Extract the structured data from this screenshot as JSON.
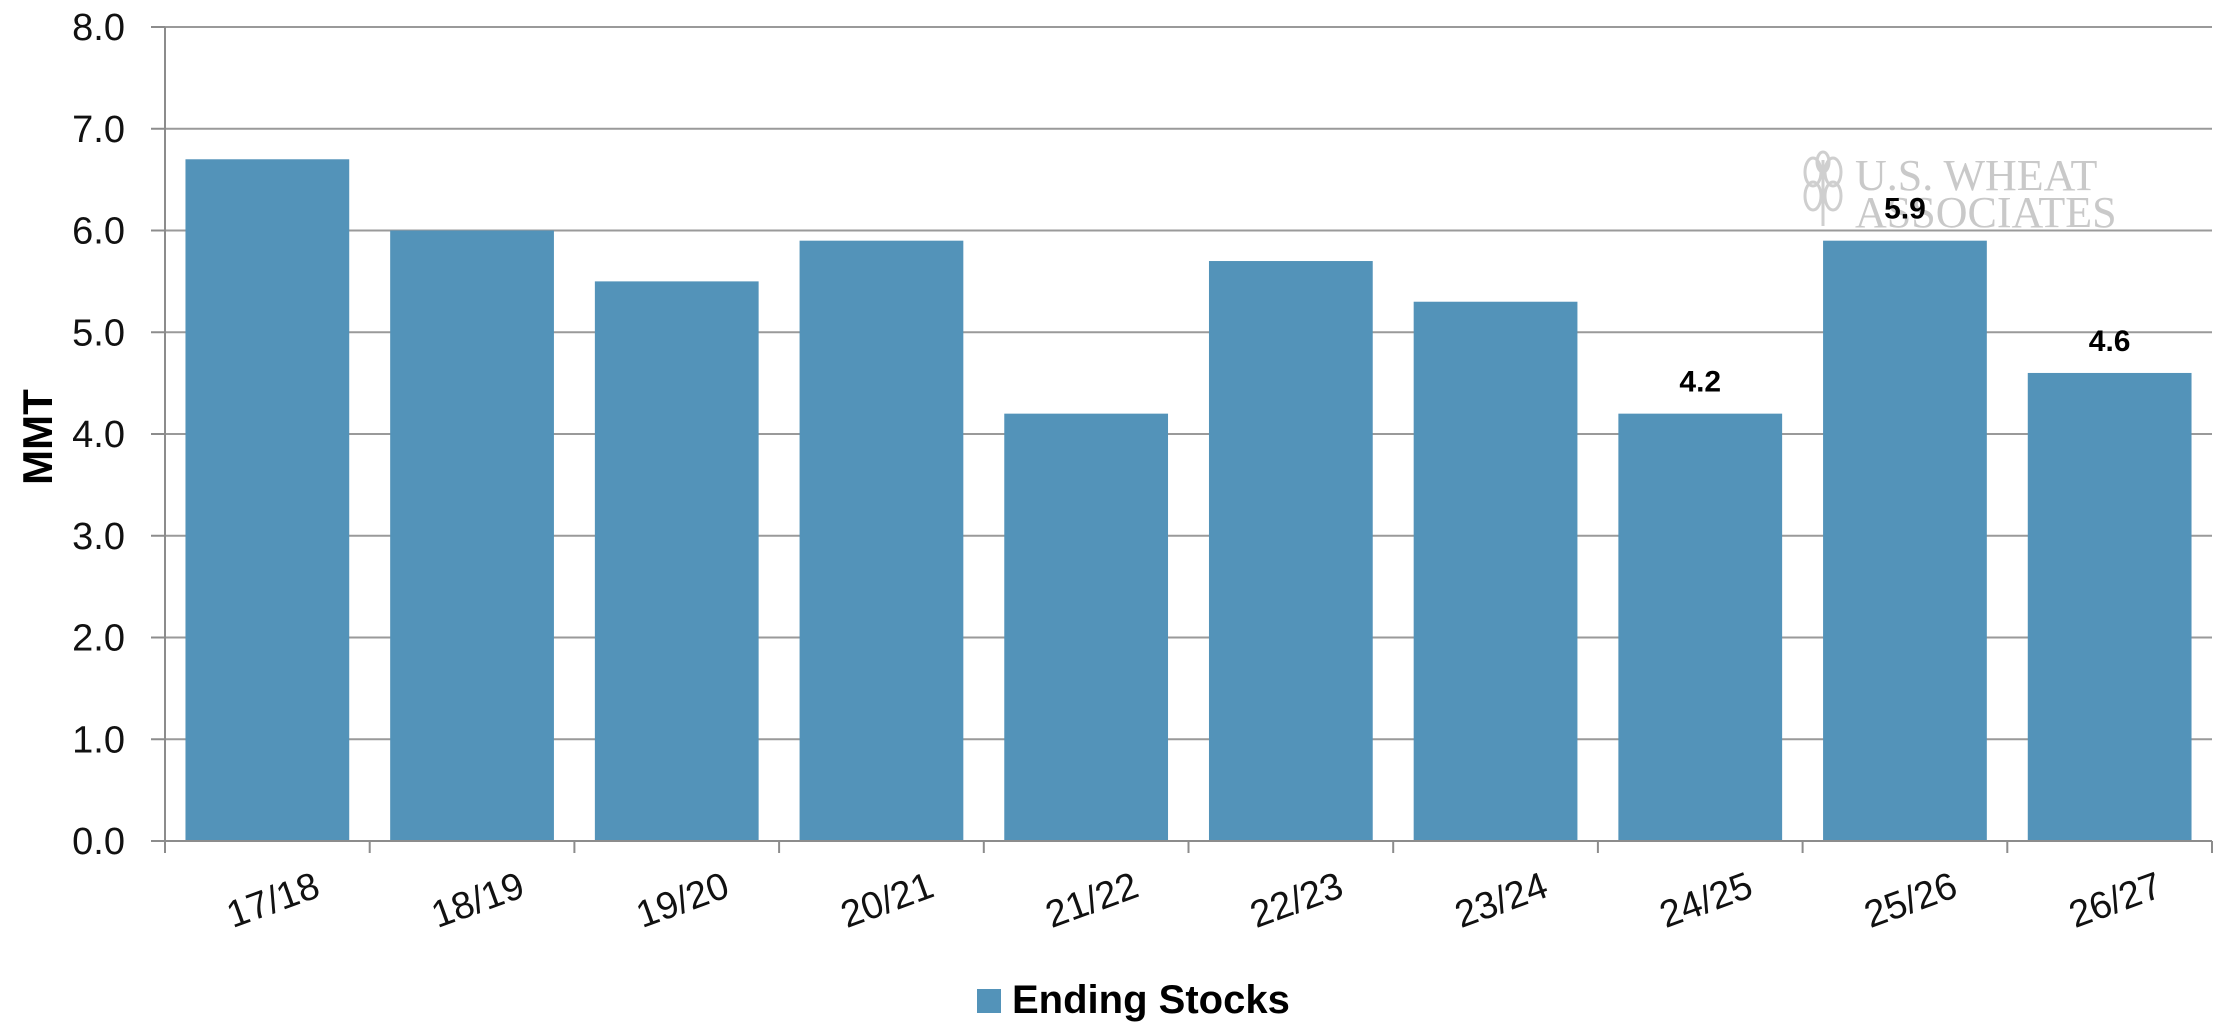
{
  "chart_data": {
    "type": "bar",
    "categories": [
      "17/18",
      "18/19",
      "19/20",
      "20/21",
      "21/22",
      "22/23",
      "23/24",
      "24/25",
      "25/26",
      "26/27"
    ],
    "series": [
      {
        "name": "Ending Stocks",
        "color": "#5393b9",
        "values": [
          6.7,
          6.0,
          5.5,
          5.9,
          4.2,
          5.7,
          5.3,
          4.2,
          5.9,
          4.6
        ]
      }
    ],
    "data_labels": {
      "24/25": "4.2",
      "25/26": "5.9",
      "26/27": "4.6"
    },
    "ylabel": "MMT",
    "xlabel": "",
    "ylim": [
      0,
      8
    ],
    "y_ticks": [
      "0.0",
      "1.0",
      "2.0",
      "3.0",
      "4.0",
      "5.0",
      "6.0",
      "7.0",
      "8.0"
    ],
    "grid": true,
    "legend_position": "bottom-center",
    "watermark": {
      "line1": "U.S. WHEAT",
      "line2": "ASSOCIATES"
    }
  }
}
